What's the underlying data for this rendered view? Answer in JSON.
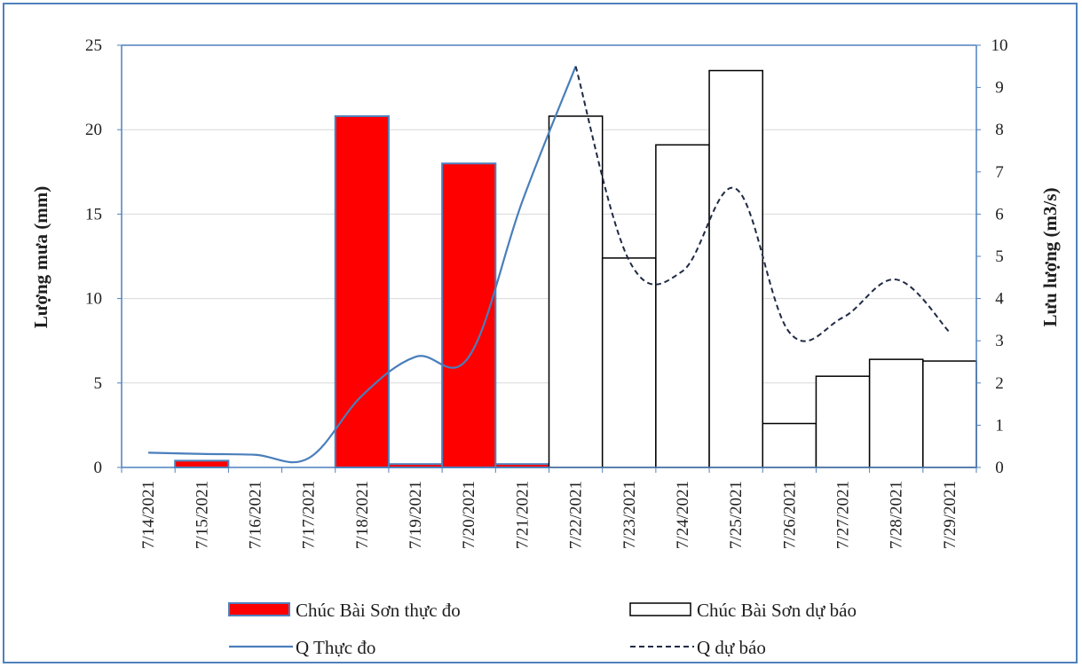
{
  "chart_data": {
    "type": "bar",
    "categories": [
      "7/14/2021",
      "7/15/2021",
      "7/16/2021",
      "7/17/2021",
      "7/18/2021",
      "7/19/2021",
      "7/20/2021",
      "7/21/2021",
      "7/22/2021",
      "7/23/2021",
      "7/24/2021",
      "7/25/2021",
      "7/26/2021",
      "7/27/2021",
      "7/28/2021",
      "7/29/2021"
    ],
    "ylabel": "Lượng mưa (mm)",
    "y2label": "Lưu lượng (m3/s)",
    "ylim": [
      0,
      25
    ],
    "y2lim": [
      0,
      10
    ],
    "yticks": [
      "0",
      "5",
      "10",
      "15",
      "20",
      "25"
    ],
    "y2ticks": [
      "0",
      "1",
      "2",
      "3",
      "4",
      "5",
      "6",
      "7",
      "8",
      "9",
      "10"
    ],
    "grid": true,
    "legend_position": "bottom",
    "series": [
      {
        "name": "Chúc Bài Sơn thực đo",
        "type": "bar",
        "axis": "left",
        "color": "#ff0000",
        "edge_color": "#4f81bd",
        "values": [
          0,
          0.4,
          0,
          0,
          20.8,
          0.2,
          18.0,
          0.2,
          null,
          null,
          null,
          null,
          null,
          null,
          null,
          null
        ]
      },
      {
        "name": "Chúc Bài Sơn dự báo",
        "type": "bar",
        "axis": "left",
        "color": "#ffffff",
        "edge_color": "#000000",
        "values": [
          null,
          null,
          null,
          null,
          null,
          null,
          null,
          null,
          20.8,
          12.4,
          19.1,
          23.5,
          2.6,
          5.4,
          6.4,
          6.3
        ]
      },
      {
        "name": "Q Thực đo",
        "type": "line",
        "axis": "right",
        "color": "#4a7ebb",
        "values": [
          0.35,
          0.32,
          0.3,
          0.22,
          1.7,
          2.62,
          2.62,
          6.3,
          9.5,
          null,
          null,
          null,
          null,
          null,
          null,
          null
        ]
      },
      {
        "name": "Q dự báo",
        "type": "line",
        "axis": "right",
        "color": "#1f2a44",
        "dashed": true,
        "values": [
          null,
          null,
          null,
          null,
          null,
          null,
          null,
          null,
          9.5,
          4.9,
          4.65,
          6.6,
          3.2,
          3.55,
          4.45,
          3.2
        ]
      }
    ]
  }
}
